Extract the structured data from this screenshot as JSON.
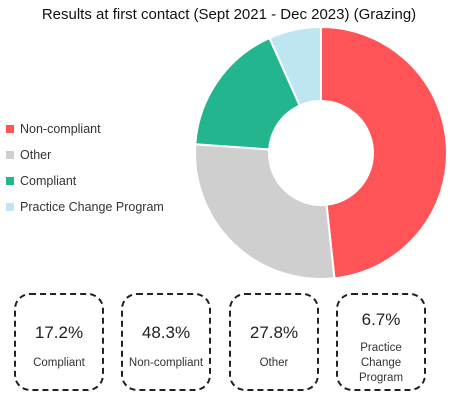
{
  "chart_data": {
    "type": "pie",
    "title": "Results at first contact (Sept 2021 - Dec 2023) (Grazing)",
    "categories": [
      "Non-compliant",
      "Other",
      "Compliant",
      "Practice Change Program"
    ],
    "values": [
      48.3,
      27.8,
      17.2,
      6.7
    ],
    "unit": "%",
    "colors": [
      "#fe5457",
      "#d0cfcf",
      "#23b58e",
      "#bee6f2"
    ],
    "legend_position": "left",
    "donut": true
  },
  "cards": [
    {
      "value": "17.2%",
      "label": "Compliant"
    },
    {
      "value": "48.3%",
      "label": "Non-compliant"
    },
    {
      "value": "27.8%",
      "label": "Other"
    },
    {
      "value": "6.7%",
      "label_lines": [
        "Practice",
        "Change",
        "Program"
      ]
    }
  ]
}
